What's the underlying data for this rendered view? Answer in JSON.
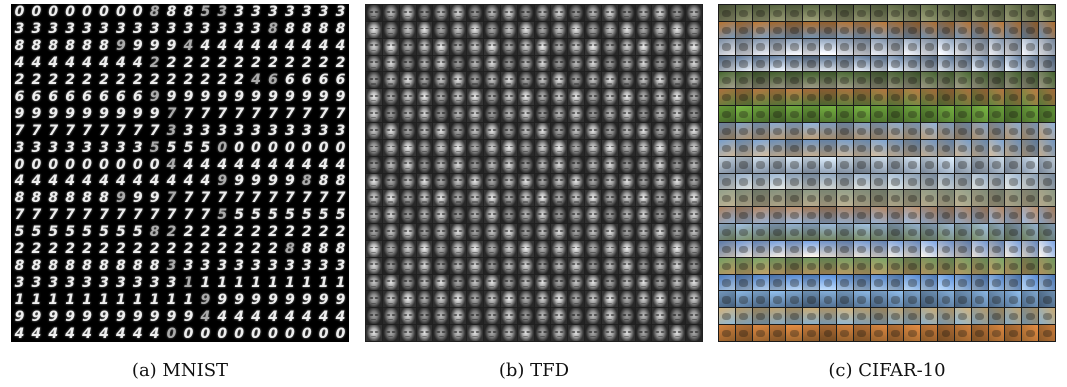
{
  "panels": {
    "mnist": {
      "caption": "(a) MNIST",
      "rows": [
        "00000000888533333333",
        "33333333333333388888",
        "88888899994444444444",
        "44444444222222222222",
        "22222222222222466666",
        "66666666999999999999",
        "99999999977777777777",
        "77777777733333333333",
        "33333333555500000000",
        "00000000044444444444",
        "44444444444499999888",
        "88888899977777777777",
        "77777777777755555555",
        "55555555822222222222",
        "22222222222222228888",
        "88888888833333333333",
        "33333333331111111111",
        "11111111111999999999",
        "99999999999444444444",
        "44444444400000000000"
      ]
    },
    "tfd": {
      "caption": "(b) TFD",
      "grid_size": 20
    },
    "cifar": {
      "caption": "(c) CIFAR-10",
      "grid_size": 20,
      "row_palettes": [
        [
          "#4f5b3a",
          "#8a8c6a"
        ],
        [
          "#a5682c",
          "#6d8aa8"
        ],
        [
          "#7a8ca2",
          "#e6e6ea"
        ],
        [
          "#526a88",
          "#d8dde4"
        ],
        [
          "#3d5a2a",
          "#8f8a7a"
        ],
        [
          "#a36a3a",
          "#5a7a3a"
        ],
        [
          "#6aa03a",
          "#4b6d2c"
        ],
        [
          "#7f9bbd",
          "#a38a6a"
        ],
        [
          "#6c8fb8",
          "#b9a58a"
        ],
        [
          "#c5d3df",
          "#7e8da0"
        ],
        [
          "#8aa0b8",
          "#c9ccc8"
        ],
        [
          "#7f8b78",
          "#a59a7f"
        ],
        [
          "#a27a5a",
          "#8aa2c0"
        ],
        [
          "#8ca8c8",
          "#6a7a58"
        ],
        [
          "#6b8fc8",
          "#e0d8cc"
        ],
        [
          "#6a8f5a",
          "#a88a5a"
        ],
        [
          "#4d7cbf",
          "#a9c2dc"
        ],
        [
          "#7fa7cf",
          "#4e6a8a"
        ],
        [
          "#b59a6a",
          "#7fa0b8"
        ],
        [
          "#c77a3a",
          "#8a5a2a"
        ]
      ]
    }
  }
}
